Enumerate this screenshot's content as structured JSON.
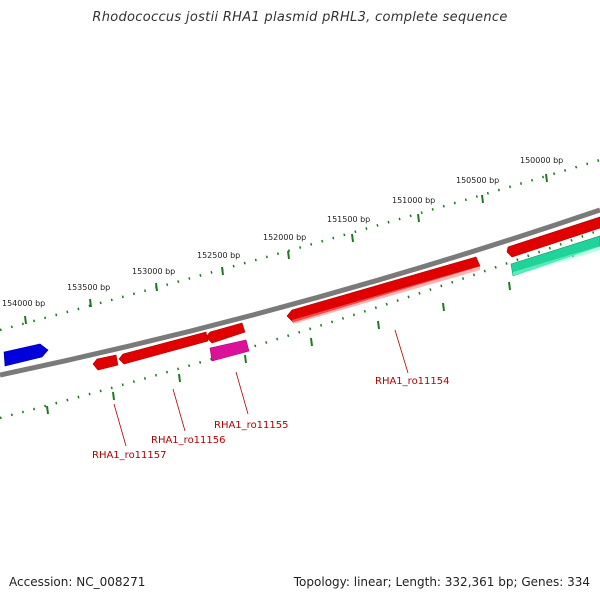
{
  "title": "Rhodococcus jostii RHA1 plasmid pRHL3, complete sequence",
  "colors": {
    "backbone": "#7a7a7a",
    "ruler": "#1e7a1e",
    "gene_label": "#b40000",
    "gene_red": "#e00000",
    "gene_blue": "#0000dd",
    "gene_magenta": "#dd1199",
    "gene_green": "#1fd39a"
  },
  "ruler_labels": [
    "150000 bp",
    "150500 bp",
    "151000 bp",
    "151500 bp",
    "152000 bp",
    "152500 bp",
    "153000 bp",
    "153500 bp",
    "154000 bp"
  ],
  "gene_labels": [
    "RHA1_ro11154",
    "RHA1_ro11155",
    "RHA1_ro11156",
    "RHA1_ro11157"
  ],
  "footer": {
    "accession": "Accession: NC_008271",
    "summary": "Topology: linear; Length: 332,361 bp; Genes: 334"
  }
}
